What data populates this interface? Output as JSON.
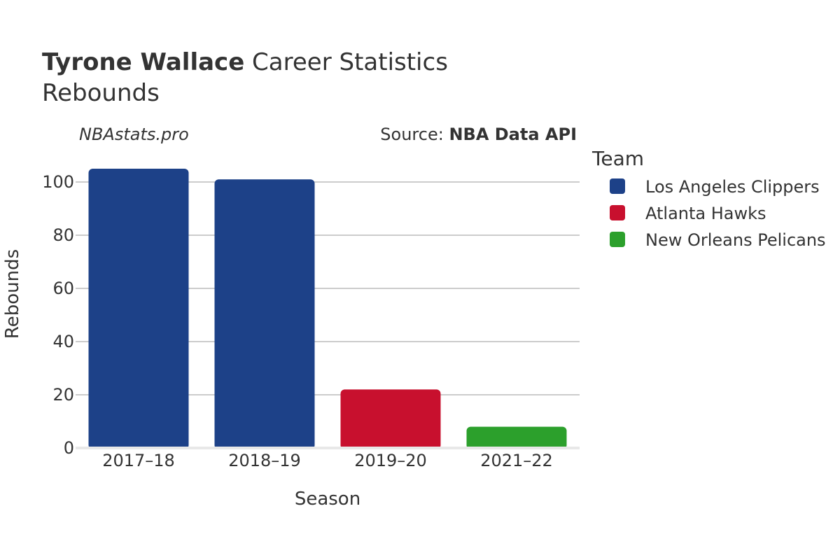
{
  "title": {
    "name": "Tyrone Wallace",
    "rest": " Career Statistics",
    "subtitle": "Rebounds"
  },
  "watermark": "NBAstats.pro",
  "source": {
    "prefix": "Source: ",
    "name": "NBA Data API"
  },
  "legend": {
    "title": "Team",
    "position": "right"
  },
  "chart_data": {
    "type": "bar",
    "categories": [
      "2017–18",
      "2018–19",
      "2019–20",
      "2021–22"
    ],
    "values": [
      105,
      101,
      22,
      8
    ],
    "bar_teams": [
      "Los Angeles Clippers",
      "Los Angeles Clippers",
      "Atlanta Hawks",
      "New Orleans Pelicans"
    ],
    "series": [
      {
        "name": "Los Angeles Clippers",
        "color": "#1d4188"
      },
      {
        "name": "Atlanta Hawks",
        "color": "#c8102e"
      },
      {
        "name": "New Orleans Pelicans",
        "color": "#2ca02c"
      }
    ],
    "xlabel": "Season",
    "ylabel": "Rebounds",
    "ylim": [
      0,
      110
    ],
    "yticks": [
      0,
      20,
      40,
      60,
      80,
      100
    ],
    "grid": true
  }
}
